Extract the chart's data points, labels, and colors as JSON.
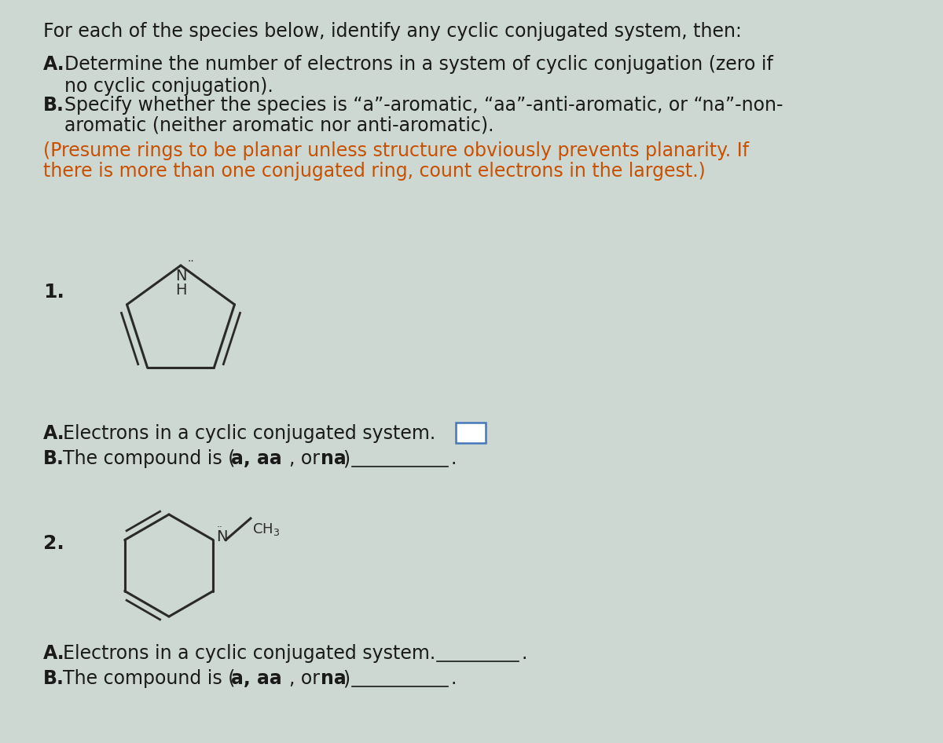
{
  "bg_color": "#cdd8d3",
  "text_color": "#1a1a1a",
  "orange_color": "#c85000",
  "header": "For each of the species below, identify any cyclic conjugated system, then:",
  "line_A": "Determine the number of electrons in a system of cyclic conjugation (zero if\nno cyclic conjugation).",
  "line_B1": "Specify whether the species is “a”-aromatic, “aa”-anti-aromatic, or “na”-non-",
  "line_B2": "aromatic (neither aromatic nor anti-aromatic).",
  "orange1": "(Presume rings to be planar unless structure obviously prevents planarity. If",
  "orange2": "there is more than one conjugated ring, count electrons in the largest.)",
  "q1_A": "A.Electrons in a cyclic conjugated system.",
  "q1_B_pre": "B.The compound is (",
  "q1_B_bold": "a, aa",
  "q1_B_or": ", or ",
  "q1_B_na": "na",
  "q1_B_close": ")",
  "q2_A": "A.Electrons in a cyclic conjugated system.",
  "q2_B_pre": "B.The compound is (",
  "q2_B_bold": "a, aa",
  "q2_B_or": ", or ",
  "q2_B_na": "na",
  "q2_B_close": ")"
}
